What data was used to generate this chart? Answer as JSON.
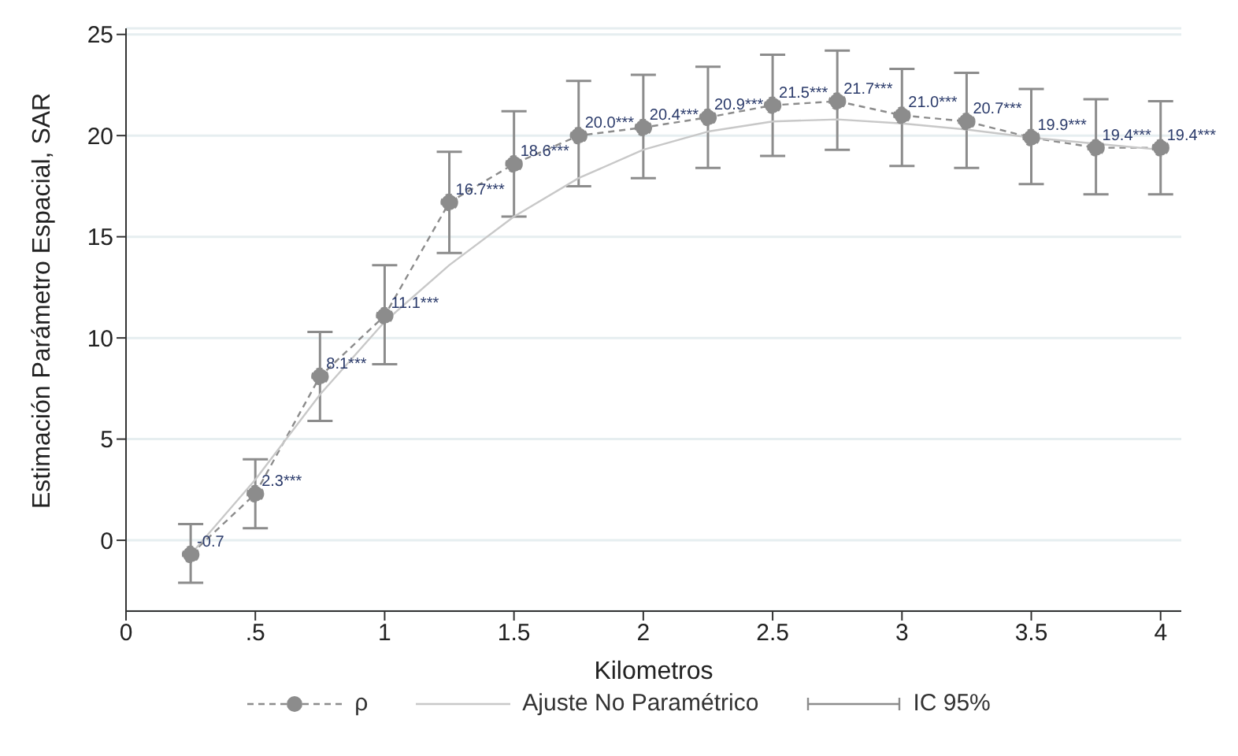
{
  "chart_data": {
    "type": "line",
    "xlabel": "Kilometros",
    "ylabel": "Estimación Parámetro Espacial, SAR",
    "x": [
      0.25,
      0.5,
      0.75,
      1,
      1.25,
      1.5,
      1.75,
      2,
      2.25,
      2.5,
      2.75,
      3,
      3.25,
      3.5,
      3.75,
      4
    ],
    "series": [
      {
        "name": "ρ",
        "color": "#8c8c8c",
        "line_style": "dashed",
        "marker": "circle",
        "values": [
          -0.7,
          2.3,
          8.1,
          11.1,
          16.7,
          18.6,
          20.0,
          20.4,
          20.9,
          21.5,
          21.7,
          21.0,
          20.7,
          19.9,
          19.4,
          19.4
        ],
        "errors": [
          [
            -2.1,
            0.8
          ],
          [
            0.6,
            4.0
          ],
          [
            5.9,
            10.3
          ],
          [
            8.7,
            13.6
          ],
          [
            14.2,
            19.2
          ],
          [
            16.0,
            21.2
          ],
          [
            17.5,
            22.7
          ],
          [
            17.9,
            23.0
          ],
          [
            18.4,
            23.4
          ],
          [
            19.0,
            24.0
          ],
          [
            19.3,
            24.2
          ],
          [
            18.5,
            23.3
          ],
          [
            18.4,
            23.1
          ],
          [
            17.6,
            22.3
          ],
          [
            17.1,
            21.8
          ],
          [
            17.1,
            21.7
          ]
        ],
        "value_labels": [
          "-0.7",
          "2.3***",
          "8.1***",
          "11.1***",
          "16.7***",
          "18.6***",
          "20.0***",
          "20.4***",
          "20.9***",
          "21.5***",
          "21.7***",
          "21.0***",
          "20.7***",
          "19.9***",
          "19.4***",
          "19.4***"
        ]
      },
      {
        "name": "Ajuste No Paramétrico",
        "color": "#c8c8c8",
        "line_style": "solid",
        "marker": "none",
        "values": [
          -0.7,
          3.0,
          7.2,
          10.8,
          13.6,
          16.0,
          17.9,
          19.3,
          20.2,
          20.7,
          20.8,
          20.6,
          20.3,
          19.9,
          19.6,
          19.3
        ]
      }
    ],
    "annotations": [
      "IC 95%"
    ],
    "xlim": [
      0,
      4.08
    ],
    "xticks": [
      0,
      {
        "value": 0.5,
        "label": ".5"
      },
      1,
      1.5,
      2,
      2.5,
      3,
      3.5,
      4
    ],
    "ylim": [
      -3.5,
      25.3
    ],
    "yticks": [
      0,
      5,
      10,
      15,
      20,
      25
    ],
    "grid": "y",
    "legend": "bottom"
  }
}
